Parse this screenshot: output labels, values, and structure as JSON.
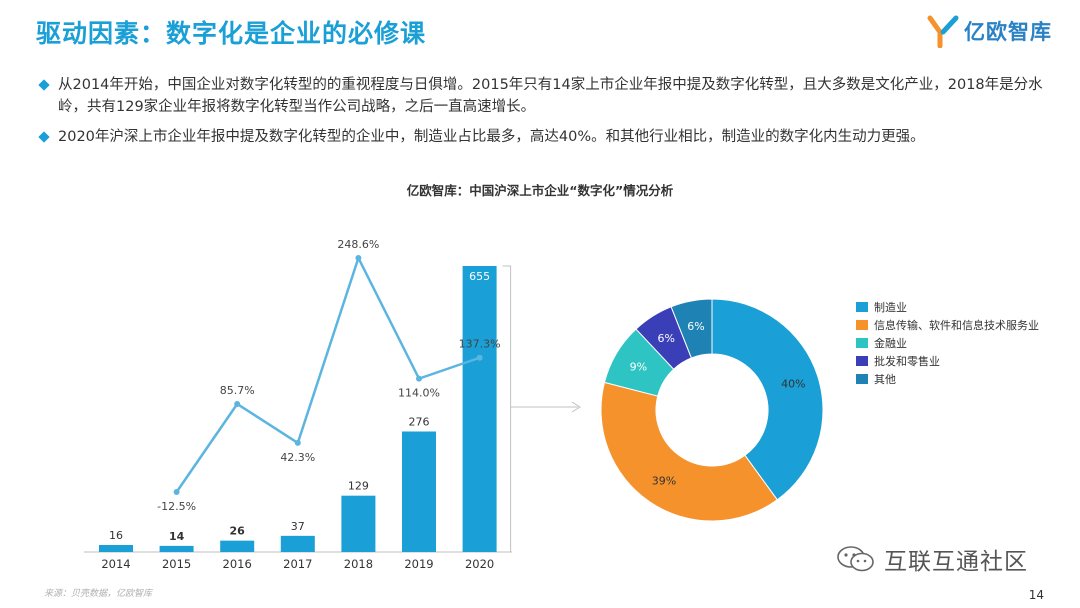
{
  "header": {
    "title": "驱动因素：数字化是企业的必修课",
    "logo_text": "亿欧智库"
  },
  "bullets": [
    "从2014年开始，中国企业对数字化转型的的重视程度与日俱增。2015年只有14家上市企业年报中提及数字化转型，且大多数是文化产业，2018年是分水岭，共有129家企业年报将数字化转型当作公司战略，之后一直高速增长。",
    "2020年沪深上市企业年报中提及数字化转型的企业中，制造业占比最多，高达40%。和其他行业相比，制造业的数字化内生动力更强。"
  ],
  "chart_title": "亿欧智库：中国沪深上市企业“数字化”情况分析",
  "chart_data": [
    {
      "type": "bar",
      "categories": [
        "2014",
        "2015",
        "2016",
        "2017",
        "2018",
        "2019",
        "2020"
      ],
      "series": [
        {
          "values": [
            16,
            14,
            26,
            37,
            129,
            276,
            655
          ],
          "color": "#1a9fd6"
        }
      ],
      "data_labels": [
        "16",
        "14",
        "26",
        "37",
        "129",
        "276",
        "655"
      ],
      "ylim": [
        0,
        655
      ]
    },
    {
      "type": "line",
      "categories": [
        "2015",
        "2016",
        "2017",
        "2018",
        "2019",
        "2020"
      ],
      "series": [
        {
          "values": [
            -12.5,
            85.7,
            42.3,
            248.6,
            114.0,
            137.3
          ],
          "color": "#5bb5e0"
        }
      ],
      "data_labels": [
        "-12.5%",
        "85.7%",
        "42.3%",
        "248.6%",
        "114.0%",
        "137.3%"
      ]
    },
    {
      "type": "pie",
      "donut": true,
      "categories": [
        "制造业",
        "信息传输、软件和信息技术服务业",
        "金融业",
        "批发和零售业",
        "其他"
      ],
      "values": [
        40,
        39,
        9,
        6,
        6
      ],
      "data_labels": [
        "40%",
        "39%",
        "9%",
        "6%",
        "6%"
      ],
      "colors": [
        "#1a9fd6",
        "#f5922b",
        "#2ec4c4",
        "#3a3fb8",
        "#1f82b4"
      ],
      "legend": "right"
    }
  ],
  "footer": {
    "source": "来源：贝壳数据，亿欧智库",
    "watermark": "互联互通社区",
    "page_number": "14"
  }
}
